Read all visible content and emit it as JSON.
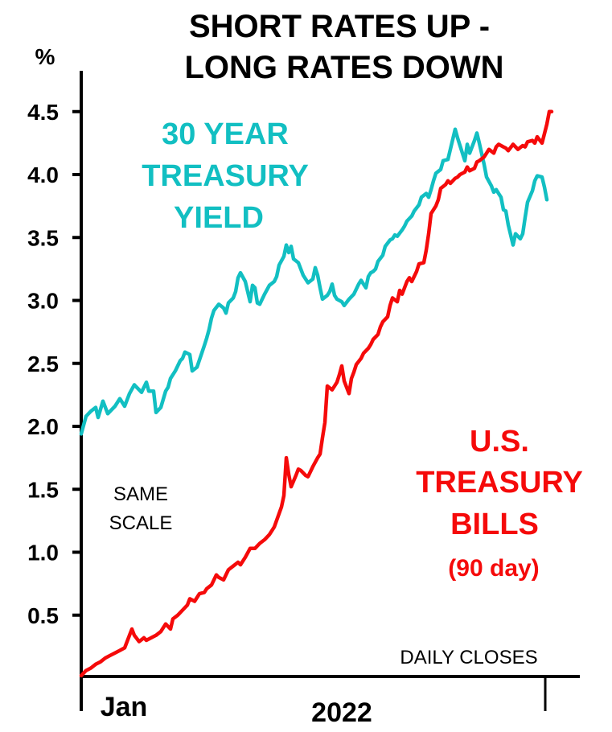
{
  "chart_data": {
    "type": "line",
    "title_lines": [
      "SHORT RATES UP -",
      "LONG RATES DOWN"
    ],
    "ylabel": "%",
    "xlabel_start": "Jan",
    "xlabel_center": "2022",
    "ylim": [
      0,
      4.75
    ],
    "yticks": [
      0.5,
      1.0,
      1.5,
      2.0,
      2.5,
      3.0,
      3.5,
      4.0,
      4.5
    ],
    "ytick_labels": [
      "0.5",
      "1.0",
      "1.5",
      "2.0",
      "2.5",
      "3.0",
      "3.5",
      "4.0",
      "4.5"
    ],
    "xlim": [
      0,
      195
    ],
    "x_unit": "trading day index (2022)",
    "grid": false,
    "annotations": {
      "same_scale": [
        "SAME",
        "SCALE"
      ],
      "daily_closes": "DAILY CLOSES"
    },
    "series": [
      {
        "name": "30 Year Treasury Yield",
        "label_lines": [
          "30 YEAR",
          "TREASURY",
          "YIELD"
        ],
        "color": "#12BFC2",
        "x": [
          0,
          2,
          4,
          6,
          7,
          9,
          11,
          14,
          16,
          18,
          20,
          22,
          25,
          27,
          28,
          30,
          31,
          33,
          35,
          36,
          37,
          39,
          41,
          42,
          43,
          45,
          46,
          48,
          51,
          52,
          53,
          54,
          55,
          57,
          59,
          60,
          61,
          63,
          64,
          65,
          66,
          68,
          70,
          71,
          72,
          73,
          74,
          76,
          78,
          80,
          81,
          82,
          84,
          85,
          86,
          87,
          88,
          90,
          92,
          94,
          96,
          97,
          98,
          99,
          100,
          102,
          103,
          104,
          105,
          106,
          108,
          109,
          111,
          112,
          113,
          115,
          116,
          118,
          119,
          120,
          121,
          122,
          123,
          125,
          126,
          128,
          129,
          130,
          131,
          133,
          134,
          135,
          137,
          138,
          140,
          141,
          143,
          144,
          145,
          146,
          147,
          149,
          150,
          152,
          153,
          155,
          156,
          158,
          159,
          160,
          161,
          163,
          164,
          165,
          167,
          168,
          170,
          171,
          172,
          174,
          175,
          176,
          177,
          179,
          180,
          182,
          183,
          184,
          185,
          187,
          188,
          189,
          191,
          192,
          193
        ],
        "y": [
          1.94,
          2.08,
          2.12,
          2.15,
          2.07,
          2.2,
          2.1,
          2.16,
          2.22,
          2.16,
          2.26,
          2.33,
          2.27,
          2.35,
          2.28,
          2.28,
          2.11,
          2.15,
          2.28,
          2.31,
          2.38,
          2.44,
          2.52,
          2.54,
          2.59,
          2.57,
          2.44,
          2.47,
          2.64,
          2.7,
          2.77,
          2.86,
          2.92,
          2.97,
          2.94,
          2.9,
          2.98,
          3.02,
          3.07,
          3.18,
          3.22,
          3.15,
          2.99,
          3.12,
          3.1,
          2.98,
          2.97,
          3.05,
          3.12,
          3.15,
          3.19,
          3.28,
          3.35,
          3.44,
          3.38,
          3.43,
          3.33,
          3.3,
          3.2,
          3.14,
          3.17,
          3.26,
          3.2,
          3.1,
          3.01,
          3.04,
          3.07,
          3.13,
          3.04,
          3.01,
          2.99,
          2.96,
          3.01,
          3.03,
          3.05,
          3.13,
          3.16,
          3.1,
          3.19,
          3.22,
          3.23,
          3.25,
          3.31,
          3.36,
          3.43,
          3.48,
          3.49,
          3.52,
          3.51,
          3.56,
          3.59,
          3.63,
          3.67,
          3.71,
          3.76,
          3.82,
          3.85,
          3.82,
          3.88,
          3.95,
          4.01,
          4.04,
          4.11,
          4.12,
          4.2,
          4.36,
          4.29,
          4.17,
          4.11,
          4.24,
          4.17,
          4.27,
          4.33,
          4.25,
          4.08,
          3.98,
          3.91,
          3.86,
          3.88,
          3.82,
          3.72,
          3.71,
          3.6,
          3.44,
          3.53,
          3.49,
          3.53,
          3.66,
          3.78,
          3.87,
          3.95,
          3.99,
          3.98,
          3.9,
          3.8
        ]
      },
      {
        "name": "U.S. Treasury Bills (90 day)",
        "label_lines": [
          "U.S.",
          "TREASURY",
          "BILLS"
        ],
        "label_sub": "(90 day)",
        "color": "#F50A0A",
        "x": [
          0,
          2,
          4,
          6,
          8,
          10,
          12,
          14,
          16,
          18,
          20,
          21,
          22,
          24,
          26,
          27,
          29,
          31,
          33,
          35,
          37,
          38,
          40,
          42,
          44,
          45,
          47,
          49,
          51,
          52,
          54,
          56,
          57,
          59,
          61,
          63,
          65,
          66,
          68,
          70,
          72,
          74,
          76,
          78,
          80,
          83,
          84,
          85,
          86,
          87,
          89,
          90,
          91,
          93,
          94,
          96,
          98,
          99,
          100,
          101,
          102,
          104,
          105,
          106,
          107,
          108,
          109,
          111,
          112,
          113,
          114,
          116,
          117,
          119,
          120,
          121,
          123,
          124,
          125,
          127,
          128,
          129,
          131,
          132,
          133,
          135,
          136,
          137,
          139,
          140,
          142,
          143,
          144,
          145,
          147,
          148,
          149,
          151,
          152,
          153,
          155,
          156,
          157,
          159,
          160,
          161,
          163,
          164,
          165,
          167,
          168,
          169,
          171,
          172,
          173,
          175,
          176,
          177,
          179,
          180,
          181,
          183,
          184,
          185,
          187,
          188,
          189,
          191,
          193,
          194,
          195
        ],
        "y": [
          0.02,
          0.06,
          0.08,
          0.11,
          0.13,
          0.16,
          0.18,
          0.2,
          0.22,
          0.24,
          0.34,
          0.39,
          0.34,
          0.29,
          0.32,
          0.3,
          0.32,
          0.34,
          0.37,
          0.43,
          0.39,
          0.47,
          0.5,
          0.54,
          0.58,
          0.63,
          0.61,
          0.67,
          0.68,
          0.71,
          0.74,
          0.82,
          0.8,
          0.78,
          0.86,
          0.89,
          0.92,
          0.9,
          0.96,
          1.03,
          1.03,
          1.07,
          1.1,
          1.14,
          1.2,
          1.36,
          1.45,
          1.75,
          1.62,
          1.52,
          1.61,
          1.66,
          1.65,
          1.61,
          1.6,
          1.68,
          1.75,
          1.78,
          1.91,
          2.03,
          2.32,
          2.29,
          2.32,
          2.35,
          2.41,
          2.48,
          2.36,
          2.26,
          2.38,
          2.43,
          2.49,
          2.54,
          2.58,
          2.62,
          2.65,
          2.69,
          2.73,
          2.79,
          2.83,
          2.87,
          2.96,
          3.02,
          2.99,
          3.08,
          3.05,
          3.15,
          3.18,
          3.15,
          3.23,
          3.29,
          3.3,
          3.4,
          3.53,
          3.69,
          3.75,
          3.8,
          3.89,
          3.92,
          3.95,
          3.93,
          3.97,
          3.98,
          4.0,
          4.02,
          4.06,
          4.03,
          4.05,
          4.1,
          4.11,
          4.14,
          4.17,
          4.2,
          4.17,
          4.22,
          4.24,
          4.22,
          4.21,
          4.19,
          4.24,
          4.22,
          4.2,
          4.23,
          4.22,
          4.26,
          4.27,
          4.25,
          4.3,
          4.25,
          4.4,
          4.5,
          4.5
        ]
      }
    ]
  }
}
